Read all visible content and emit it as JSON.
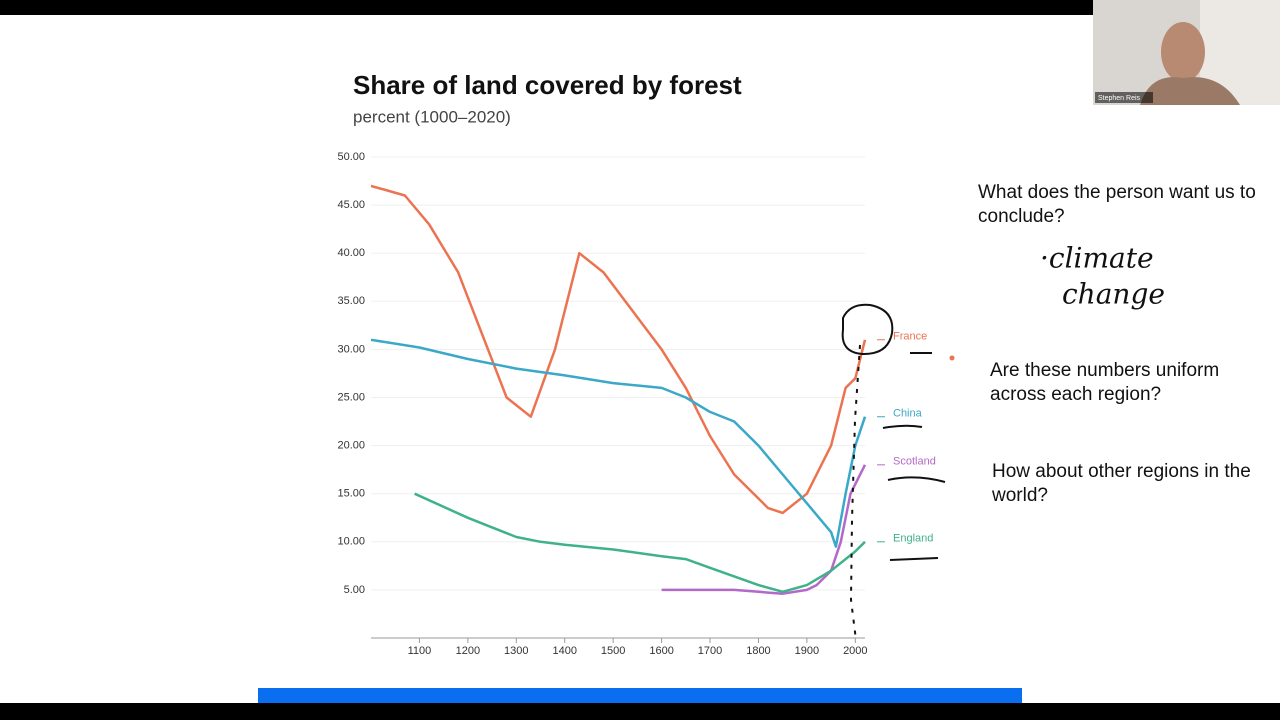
{
  "chart_data": {
    "type": "line",
    "title": "Share of land covered by forest",
    "subtitle": "percent (1000–2020)",
    "xlim": [
      1000,
      2020
    ],
    "ylim": [
      0,
      50
    ],
    "xticks": [
      1100,
      1200,
      1300,
      1400,
      1500,
      1600,
      1700,
      1800,
      1900,
      2000
    ],
    "yticks": [
      {
        "value": 5,
        "label": "5.00"
      },
      {
        "value": 10,
        "label": "10.00"
      },
      {
        "value": 15,
        "label": "15.00"
      },
      {
        "value": 20,
        "label": "20.00"
      },
      {
        "value": 25,
        "label": "25.00"
      },
      {
        "value": 30,
        "label": "30.00"
      },
      {
        "value": 35,
        "label": "35.00"
      },
      {
        "value": 40,
        "label": "40.00"
      },
      {
        "value": 45,
        "label": "45.00"
      },
      {
        "value": 50,
        "label": "50.00"
      }
    ],
    "grid": true,
    "series": [
      {
        "name": "France",
        "color": "#ec7350",
        "x": [
          1000,
          1070,
          1120,
          1180,
          1280,
          1330,
          1380,
          1430,
          1480,
          1600,
          1650,
          1700,
          1750,
          1820,
          1850,
          1900,
          1950,
          1970,
          1980,
          2000,
          2020
        ],
        "values": [
          47,
          46,
          43,
          38,
          25,
          23,
          30,
          40,
          38,
          30,
          26,
          21,
          17,
          13.5,
          13,
          15,
          20,
          24,
          26,
          27,
          31
        ]
      },
      {
        "name": "China",
        "color": "#3aa8c8",
        "x": [
          1000,
          1100,
          1200,
          1300,
          1400,
          1500,
          1600,
          1650,
          1700,
          1750,
          1800,
          1850,
          1900,
          1950,
          1960,
          1980,
          2000,
          2020
        ],
        "values": [
          31,
          30.2,
          29,
          28,
          27.3,
          26.5,
          26,
          25,
          23.5,
          22.5,
          20,
          17,
          14,
          11,
          9.5,
          15,
          20,
          23
        ]
      },
      {
        "name": "Scotland",
        "color": "#b468c8",
        "x": [
          1600,
          1700,
          1750,
          1800,
          1850,
          1900,
          1920,
          1950,
          1970,
          1990,
          2020
        ],
        "values": [
          5,
          5,
          5,
          4.8,
          4.6,
          5,
          5.5,
          7,
          10,
          15,
          18
        ]
      },
      {
        "name": "England",
        "color": "#3fb28a",
        "x": [
          1090,
          1200,
          1300,
          1350,
          1400,
          1500,
          1600,
          1650,
          1700,
          1800,
          1850,
          1900,
          1950,
          2000,
          2020
        ],
        "values": [
          15,
          12.5,
          10.5,
          10,
          9.7,
          9.2,
          8.5,
          8.2,
          7.3,
          5.5,
          4.8,
          5.5,
          7,
          9,
          10
        ]
      }
    ]
  },
  "notes": {
    "question_1": "What does the person want us to conclude?",
    "handwriting": [
      "·climate",
      "change"
    ],
    "question_2": "Are these numbers uniform across each region?",
    "question_3": "How about other regions in the world?"
  },
  "webcam": {
    "name": "Stephen Reis"
  }
}
